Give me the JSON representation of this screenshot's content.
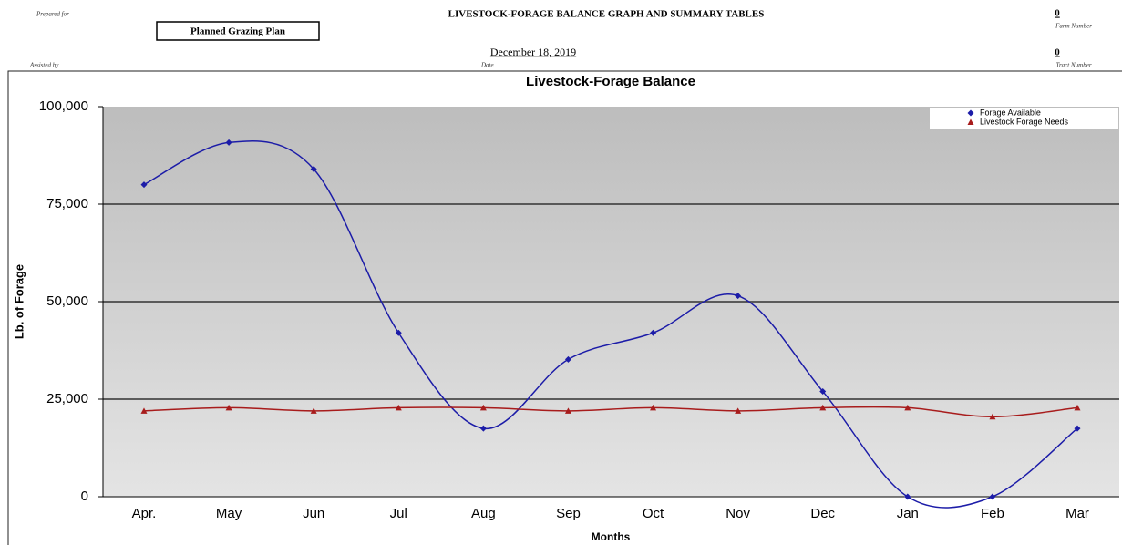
{
  "header": {
    "prepared_for_label": "Prepared for",
    "plan_name": "Planned Grazing Plan",
    "title": "LIVESTOCK-FORAGE BALANCE GRAPH AND SUMMARY TABLES",
    "farm_number": "0",
    "farm_number_label": "Farm Number",
    "assisted_by_label": "Assisted by",
    "date": "December 18, 2019",
    "date_label": "Date",
    "tract_number": "0",
    "tract_number_label": "Tract Number"
  },
  "chart_data": {
    "type": "line",
    "title": "Livestock-Forage Balance",
    "x_label": "Months",
    "y_label": "Lb. of Forage",
    "categories": [
      "Apr.",
      "May",
      "Jun",
      "Jul",
      "Aug",
      "Sep",
      "Oct",
      "Nov",
      "Dec",
      "Jan",
      "Feb",
      "Mar"
    ],
    "series": [
      {
        "name": "Forage Available",
        "color": "#1c1ca8",
        "marker": "diamond",
        "values": [
          80000,
          90800,
          84000,
          42000,
          17500,
          35200,
          42000,
          51500,
          27000,
          0,
          0,
          17500
        ]
      },
      {
        "name": "Livestock Forage Needs",
        "color": "#a81c1c",
        "marker": "triangle",
        "values": [
          22000,
          22800,
          22000,
          22800,
          22800,
          22000,
          22800,
          22000,
          22800,
          22800,
          20500,
          22800
        ]
      }
    ],
    "ylim": [
      0,
      100000
    ],
    "yticks": [
      0,
      {
        "value": 25000,
        "label": "25,000"
      },
      {
        "value": 50000,
        "label": "50,000"
      },
      {
        "value": 75000,
        "label": "75,000"
      },
      {
        "value": 100000,
        "label": "100,000"
      }
    ],
    "grid": true,
    "smooth": true,
    "legend": "upper right"
  }
}
